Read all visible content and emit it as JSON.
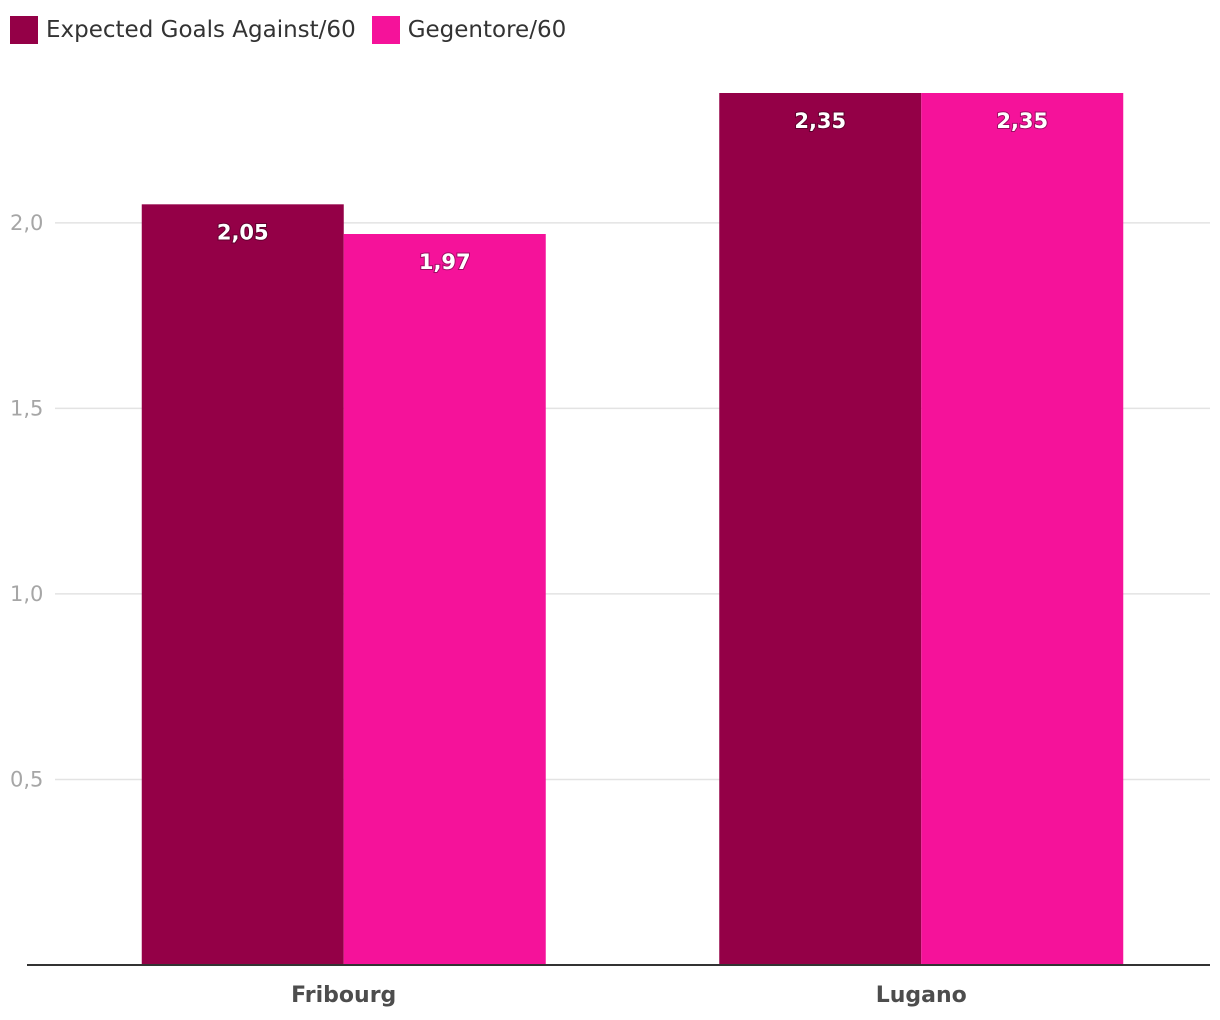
{
  "chart_data": {
    "type": "bar",
    "title": "",
    "xlabel": "",
    "ylabel": "",
    "categories": [
      "Fribourg",
      "Lugano"
    ],
    "series": [
      {
        "name": "Expected Goals Against/60",
        "color": "#940047",
        "values": [
          2.05,
          2.35
        ],
        "labels": [
          "2,05",
          "2,35"
        ]
      },
      {
        "name": "Gegentore/60",
        "color": "#f5129a",
        "values": [
          1.97,
          2.35
        ],
        "labels": [
          "1,97",
          "2,35"
        ]
      }
    ],
    "ylim": [
      0,
      2.35
    ],
    "yticks": [
      0.5,
      1.0,
      1.5,
      2.0
    ],
    "ytick_labels": [
      "0,5",
      "1,0",
      "1,5",
      "2,0"
    ],
    "grid": true,
    "legend_position": "top-left"
  }
}
